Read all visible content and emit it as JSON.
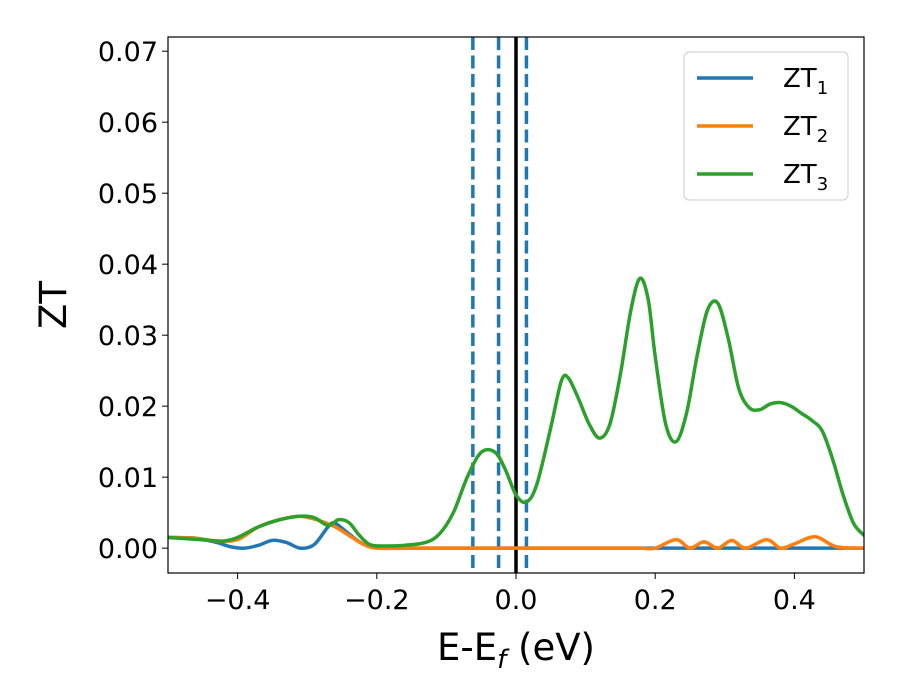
{
  "chart_data": {
    "type": "line",
    "xlabel_main": "E-E",
    "xlabel_sub": "f",
    "xlabel_unit": " (eV)",
    "ylabel": "ZT",
    "xlim": [
      -0.5,
      0.5
    ],
    "ylim": [
      -0.0035,
      0.072
    ],
    "x_ticks": [
      -0.4,
      -0.2,
      0.0,
      0.2,
      0.4
    ],
    "x_tick_labels": [
      "−0.4",
      "−0.2",
      "0.0",
      "0.2",
      "0.4"
    ],
    "y_ticks": [
      0.0,
      0.01,
      0.02,
      0.03,
      0.04,
      0.05,
      0.06,
      0.07
    ],
    "y_tick_labels": [
      "0.00",
      "0.01",
      "0.02",
      "0.03",
      "0.04",
      "0.05",
      "0.06",
      "0.07"
    ],
    "legend_position": "upper-right",
    "grid": false,
    "vlines": [
      {
        "x": -0.062,
        "style": "dashed",
        "color": "#1f77b4"
      },
      {
        "x": -0.025,
        "style": "dashed",
        "color": "#1f77b4"
      },
      {
        "x": 0.015,
        "style": "dashed",
        "color": "#1f77b4"
      },
      {
        "x": 0.0,
        "style": "solid",
        "color": "#000000"
      }
    ],
    "series": [
      {
        "name_main": "ZT",
        "name_sub": "1",
        "color": "#1f77b4",
        "x": [
          -0.5,
          -0.46,
          -0.43,
          -0.41,
          -0.39,
          -0.37,
          -0.35,
          -0.33,
          -0.31,
          -0.29,
          -0.27,
          -0.26,
          -0.24,
          -0.22,
          -0.2,
          -0.18,
          -0.15,
          -0.1,
          -0.05,
          0.0,
          0.05,
          0.1,
          0.15,
          0.2,
          0.25,
          0.3,
          0.35,
          0.4,
          0.45,
          0.5
        ],
        "y": [
          0.0015,
          0.0014,
          0.0008,
          0.0002,
          0.0,
          0.0004,
          0.0011,
          0.0008,
          0.0,
          0.0005,
          0.003,
          0.0035,
          0.002,
          0.0006,
          0.0001,
          0.0,
          0.0,
          0.0,
          0.0,
          0.0,
          0.0,
          0.0,
          0.0,
          0.0,
          0.0,
          0.0,
          0.0,
          0.0,
          0.0,
          0.0
        ]
      },
      {
        "name_main": "ZT",
        "name_sub": "2",
        "color": "#ff7f0e",
        "x": [
          -0.5,
          -0.46,
          -0.43,
          -0.4,
          -0.37,
          -0.34,
          -0.31,
          -0.28,
          -0.26,
          -0.24,
          -0.22,
          -0.2,
          -0.15,
          -0.1,
          -0.05,
          0.0,
          0.05,
          0.1,
          0.15,
          0.18,
          0.2,
          0.23,
          0.25,
          0.27,
          0.29,
          0.31,
          0.33,
          0.36,
          0.38,
          0.4,
          0.43,
          0.46,
          0.5
        ],
        "y": [
          0.0015,
          0.0014,
          0.001,
          0.0012,
          0.003,
          0.004,
          0.0045,
          0.0038,
          0.003,
          0.0018,
          0.0006,
          0.0,
          0.0,
          0.0,
          0.0,
          0.0,
          0.0,
          0.0,
          0.0,
          0.0,
          0.0,
          0.0012,
          0.0,
          0.0009,
          0.0,
          0.0011,
          0.0,
          0.0012,
          0.0,
          0.0006,
          0.0016,
          0.0002,
          0.0
        ]
      },
      {
        "name_main": "ZT",
        "name_sub": "3",
        "color": "#2ca02c",
        "x": [
          -0.5,
          -0.47,
          -0.44,
          -0.42,
          -0.4,
          -0.37,
          -0.34,
          -0.31,
          -0.29,
          -0.27,
          -0.255,
          -0.24,
          -0.225,
          -0.21,
          -0.19,
          -0.16,
          -0.13,
          -0.11,
          -0.09,
          -0.07,
          -0.05,
          -0.03,
          -0.015,
          0.0,
          0.015,
          0.03,
          0.05,
          0.065,
          0.075,
          0.09,
          0.105,
          0.12,
          0.135,
          0.15,
          0.165,
          0.178,
          0.19,
          0.2,
          0.215,
          0.23,
          0.245,
          0.26,
          0.275,
          0.29,
          0.305,
          0.32,
          0.335,
          0.35,
          0.365,
          0.38,
          0.395,
          0.41,
          0.425,
          0.44,
          0.455,
          0.47,
          0.485,
          0.5
        ],
        "y": [
          0.0015,
          0.0013,
          0.0011,
          0.001,
          0.0015,
          0.003,
          0.004,
          0.0045,
          0.0043,
          0.0032,
          0.004,
          0.0036,
          0.0018,
          0.0005,
          0.0003,
          0.0004,
          0.0008,
          0.002,
          0.005,
          0.01,
          0.0135,
          0.0135,
          0.011,
          0.0075,
          0.0065,
          0.009,
          0.017,
          0.0235,
          0.024,
          0.021,
          0.0175,
          0.0155,
          0.0175,
          0.0245,
          0.0335,
          0.038,
          0.035,
          0.027,
          0.0175,
          0.015,
          0.019,
          0.027,
          0.0335,
          0.0345,
          0.0295,
          0.0225,
          0.0198,
          0.0195,
          0.0203,
          0.0205,
          0.02,
          0.019,
          0.018,
          0.0165,
          0.0125,
          0.0075,
          0.0035,
          0.0018
        ]
      }
    ]
  }
}
